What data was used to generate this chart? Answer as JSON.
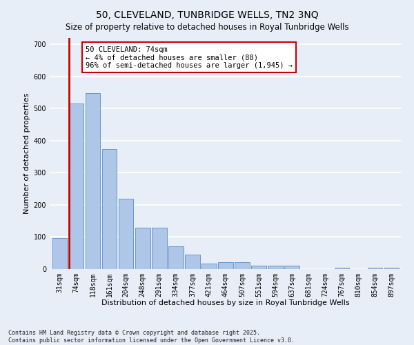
{
  "title": "50, CLEVELAND, TUNBRIDGE WELLS, TN2 3NQ",
  "subtitle": "Size of property relative to detached houses in Royal Tunbridge Wells",
  "xlabel": "Distribution of detached houses by size in Royal Tunbridge Wells",
  "ylabel": "Number of detached properties",
  "categories": [
    "31sqm",
    "74sqm",
    "118sqm",
    "161sqm",
    "204sqm",
    "248sqm",
    "291sqm",
    "334sqm",
    "377sqm",
    "421sqm",
    "464sqm",
    "507sqm",
    "551sqm",
    "594sqm",
    "637sqm",
    "681sqm",
    "724sqm",
    "767sqm",
    "810sqm",
    "854sqm",
    "897sqm"
  ],
  "values": [
    97,
    515,
    547,
    375,
    220,
    130,
    130,
    70,
    46,
    17,
    21,
    22,
    11,
    11,
    10,
    0,
    0,
    5,
    0,
    4,
    5
  ],
  "bar_color": "#aec6e8",
  "bar_edge_color": "#6699cc",
  "highlight_index": 1,
  "highlight_left_line_color": "#cc0000",
  "annotation_text": "50 CLEVELAND: 74sqm\n← 4% of detached houses are smaller (88)\n96% of semi-detached houses are larger (1,945) →",
  "annotation_box_color": "#ffffff",
  "annotation_edge_color": "#cc0000",
  "background_color": "#e8eef8",
  "grid_color": "#ffffff",
  "ylim": [
    0,
    720
  ],
  "yticks": [
    0,
    100,
    200,
    300,
    400,
    500,
    600,
    700
  ],
  "footer": "Contains HM Land Registry data © Crown copyright and database right 2025.\nContains public sector information licensed under the Open Government Licence v3.0.",
  "title_fontsize": 10,
  "xlabel_fontsize": 8,
  "ylabel_fontsize": 8,
  "tick_fontsize": 7,
  "footer_fontsize": 6,
  "annotation_fontsize": 7.5
}
